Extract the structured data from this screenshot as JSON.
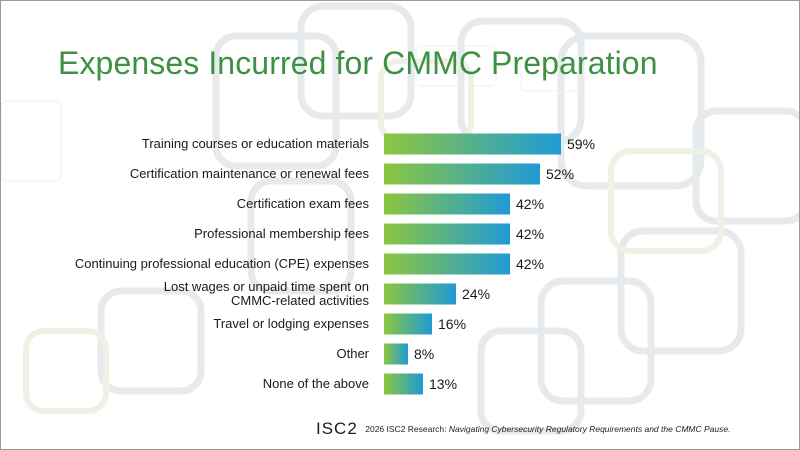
{
  "slide": {
    "title": "Expenses Incurred for CMMC Preparation",
    "footer": {
      "logo": "ISC2",
      "source_prefix": "2026 ISC2 Research: ",
      "source_title": "Navigating Cybersecurity Regulatory Requirements and the CMMC Pause."
    }
  },
  "colors": {
    "title": "#3d9142",
    "bar_gradient_start": "#8cc63f",
    "bar_gradient_end": "#1f9ad6"
  },
  "chart_data": {
    "type": "bar",
    "orientation": "horizontal",
    "categories": [
      [
        "Training courses or education materials"
      ],
      [
        "Certification maintenance or renewal fees"
      ],
      [
        "Certification exam fees"
      ],
      [
        "Professional membership fees"
      ],
      [
        "Continuing professional education (CPE) expenses"
      ],
      [
        "Lost wages or unpaid time spent on",
        "CMMC-related activities"
      ],
      [
        "Travel or lodging expenses"
      ],
      [
        "Other"
      ],
      [
        "None of the above"
      ]
    ],
    "values": [
      59,
      52,
      42,
      42,
      42,
      24,
      16,
      8,
      13
    ],
    "value_labels": [
      "59%",
      "52%",
      "42%",
      "42%",
      "42%",
      "24%",
      "16%",
      "8%",
      "13%"
    ],
    "unit": "%",
    "xlim": [
      0,
      100
    ],
    "grid": false,
    "legend": "none"
  }
}
